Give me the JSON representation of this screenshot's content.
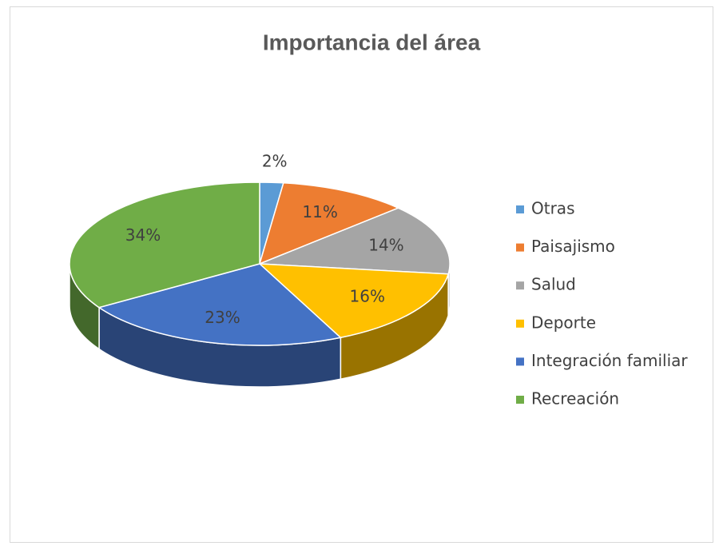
{
  "chart_data": {
    "type": "pie",
    "title": "Importancia del área",
    "categories": [
      "Otras",
      "Paisajismo",
      "Salud",
      "Deporte",
      "Integración familiar",
      "Recreación"
    ],
    "values": [
      2,
      11,
      14,
      16,
      23,
      34
    ],
    "value_labels": [
      "2%",
      "11%",
      "14%",
      "16%",
      "23%",
      "34%"
    ],
    "colors": [
      "#5b9bd5",
      "#ed7d31",
      "#a5a5a5",
      "#ffc000",
      "#4472c4",
      "#70ad47"
    ],
    "legend": "right"
  }
}
